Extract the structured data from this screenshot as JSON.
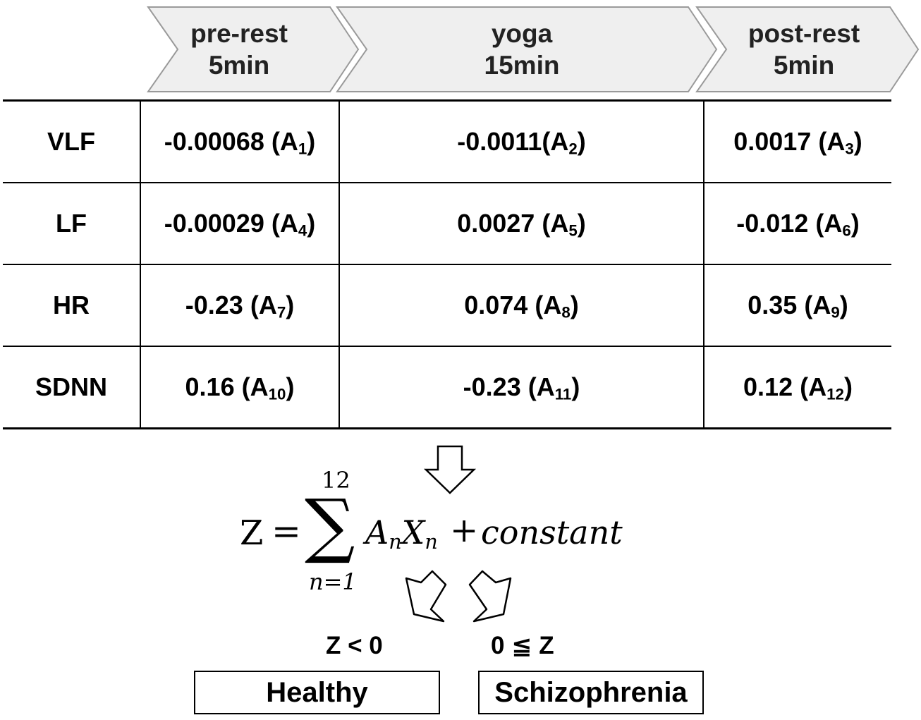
{
  "phases": [
    {
      "name": "pre-rest",
      "duration": "5min"
    },
    {
      "name": "yoga",
      "duration": "15min"
    },
    {
      "name": "post-rest",
      "duration": "5min"
    }
  ],
  "rows": [
    {
      "feature": "VLF",
      "cells": [
        {
          "value": "-0.00068",
          "sep": " ",
          "coef": "1"
        },
        {
          "value": "-0.0011",
          "sep": "",
          "coef": "2"
        },
        {
          "value": "0.0017",
          "sep": " ",
          "coef": "3"
        }
      ]
    },
    {
      "feature": "LF",
      "cells": [
        {
          "value": "-0.00029",
          "sep": " ",
          "coef": "4"
        },
        {
          "value": "0.0027",
          "sep": " ",
          "coef": "5"
        },
        {
          "value": "-0.012",
          "sep": " ",
          "coef": "6"
        }
      ]
    },
    {
      "feature": "HR",
      "cells": [
        {
          "value": "-0.23",
          "sep": " ",
          "coef": "7"
        },
        {
          "value": "0.074",
          "sep": " ",
          "coef": "8"
        },
        {
          "value": "0.35",
          "sep": " ",
          "coef": "9"
        }
      ]
    },
    {
      "feature": "SDNN",
      "cells": [
        {
          "value": "0.16",
          "sep": " ",
          "coef": "10"
        },
        {
          "value": "-0.23",
          "sep": " ",
          "coef": "11"
        },
        {
          "value": "0.12",
          "sep": " ",
          "coef": "12"
        }
      ]
    }
  ],
  "formula": {
    "lhs": "Z",
    "equals": "=",
    "sum_symbol": "∑",
    "upper_limit": "12",
    "lower_limit": "n=1",
    "term_a": "A",
    "term_x": "X",
    "index": "n",
    "plus": "+",
    "constant": "constant"
  },
  "conditions": {
    "healthy": "Z < 0",
    "schizophrenia": "0 ≦ Z"
  },
  "outcomes": {
    "healthy": "Healthy",
    "schizophrenia": "Schizophrenia"
  }
}
